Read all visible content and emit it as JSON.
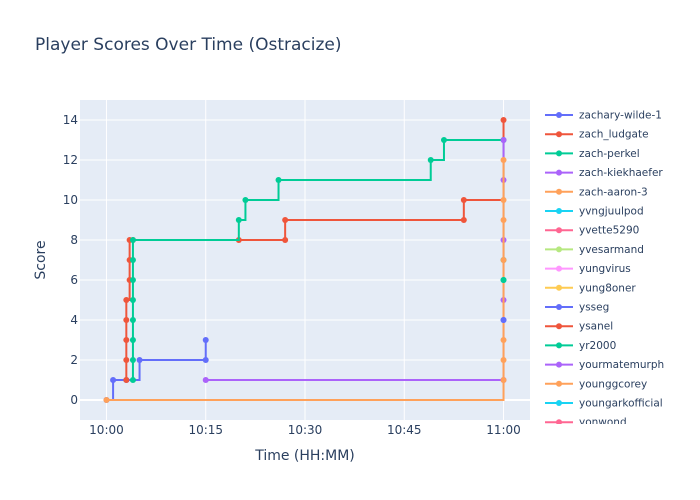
{
  "chart_data": {
    "type": "line",
    "line_shape": "step",
    "title": "Player Scores Over Time (Ostracize)",
    "xlabel": "Time (HH:MM)",
    "ylabel": "Score",
    "xlim": [
      "09:56",
      "11:04"
    ],
    "ylim": [
      -1,
      15
    ],
    "x_ticks": [
      "10:00",
      "10:15",
      "10:30",
      "10:45",
      "11:00"
    ],
    "y_ticks": [
      0,
      2,
      4,
      6,
      8,
      10,
      12,
      14
    ],
    "grid": true,
    "plot_background": "#e5ecf6",
    "legend_position": "right",
    "series": [
      {
        "name": "zachary-wilde-1",
        "color": "#636efa",
        "x": [
          "10:00",
          "10:01",
          "10:03",
          "10:05",
          "10:15",
          "10:15"
        ],
        "y": [
          0,
          1,
          1,
          2,
          2,
          3
        ]
      },
      {
        "name": "zach_ludgate",
        "color": "#ef553b",
        "x": [
          "10:03",
          "10:03",
          "10:03",
          "10:03",
          "10:03",
          "10:03.5",
          "10:03.5",
          "10:03.5",
          "10:04",
          "10:20",
          "10:27",
          "10:27",
          "10:54",
          "10:54",
          "11:00"
        ],
        "y": [
          1,
          2,
          3,
          4,
          5,
          6,
          7,
          8,
          8,
          8,
          8,
          9,
          9,
          10,
          14
        ]
      },
      {
        "name": "zach-perkel",
        "color": "#00cc96",
        "x": [
          "10:04",
          "10:04",
          "10:04",
          "10:04",
          "10:04",
          "10:04",
          "10:04",
          "10:04",
          "10:20",
          "10:21",
          "10:26",
          "10:49",
          "10:51",
          "11:00",
          "11:00"
        ],
        "y": [
          1,
          2,
          3,
          4,
          5,
          6,
          7,
          8,
          9,
          10,
          11,
          12,
          13,
          13,
          7
        ]
      },
      {
        "name": "zach-kiekhaefer",
        "color": "#ab63fa",
        "x": [
          "10:15",
          "11:00",
          "11:00",
          "11:00",
          "11:00",
          "11:00"
        ],
        "y": [
          1,
          1,
          5,
          8,
          11,
          13
        ]
      },
      {
        "name": "zach-aaron-3",
        "color": "#ffa15a",
        "x": [
          "10:00",
          "11:00",
          "11:00",
          "11:00",
          "11:00",
          "11:00",
          "11:00",
          "11:00"
        ],
        "y": [
          0,
          1,
          2,
          3,
          7,
          9,
          10,
          12
        ]
      },
      {
        "name": "yvngjuulpod",
        "color": "#19d3f3",
        "x": [],
        "y": []
      },
      {
        "name": "yvette5290",
        "color": "#ff6692",
        "x": [],
        "y": []
      },
      {
        "name": "yvesarmand",
        "color": "#b6e880",
        "x": [],
        "y": []
      },
      {
        "name": "yungvirus",
        "color": "#ff97ff",
        "x": [],
        "y": []
      },
      {
        "name": "yung8oner",
        "color": "#fecb52",
        "x": [],
        "y": []
      },
      {
        "name": "ysseg",
        "color": "#636efa",
        "x": [
          "11:00",
          "11:00"
        ],
        "y": [
          4,
          4
        ]
      },
      {
        "name": "ysanel",
        "color": "#ef553b",
        "x": [],
        "y": []
      },
      {
        "name": "yr2000",
        "color": "#00cc96",
        "x": [
          "11:00",
          "11:00"
        ],
        "y": [
          6,
          6
        ]
      },
      {
        "name": "yourmatemurph",
        "color": "#ab63fa",
        "x": [],
        "y": []
      },
      {
        "name": "younggcorey",
        "color": "#ffa15a",
        "x": [],
        "y": []
      },
      {
        "name": "youngarkofficial",
        "color": "#19d3f3",
        "x": [],
        "y": []
      },
      {
        "name": "yonwond",
        "color": "#ff6692",
        "x": [],
        "y": []
      }
    ]
  }
}
